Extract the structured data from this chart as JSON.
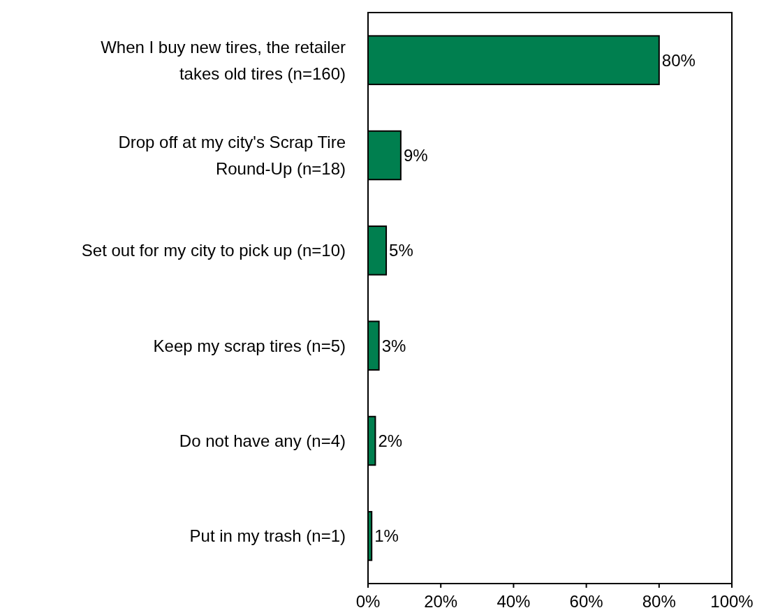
{
  "chart_data": {
    "type": "bar",
    "orientation": "horizontal",
    "categories": [
      "When I buy new tires, the retailer takes old tires (n=160)",
      "Drop off at my city's Scrap Tire Round-Up (n=18)",
      "Set out for my city to pick up (n=10)",
      "Keep my scrap tires (n=5)",
      "Do not have any (n=4)",
      "Put in my trash (n=1)"
    ],
    "values": [
      80,
      9,
      5,
      3,
      2,
      1
    ],
    "value_labels": [
      "80%",
      "9%",
      "5%",
      "3%",
      "2%",
      "1%"
    ],
    "color": "#007f4f",
    "xlim": [
      0,
      100
    ],
    "xticks": [
      {
        "value": 0,
        "label": "0%"
      },
      {
        "value": 20,
        "label": "20%"
      },
      {
        "value": 40,
        "label": "40%"
      },
      {
        "value": 60,
        "label": "60%"
      },
      {
        "value": 80,
        "label": "80%"
      },
      {
        "value": 100,
        "label": "100%"
      }
    ],
    "grid": false
  }
}
